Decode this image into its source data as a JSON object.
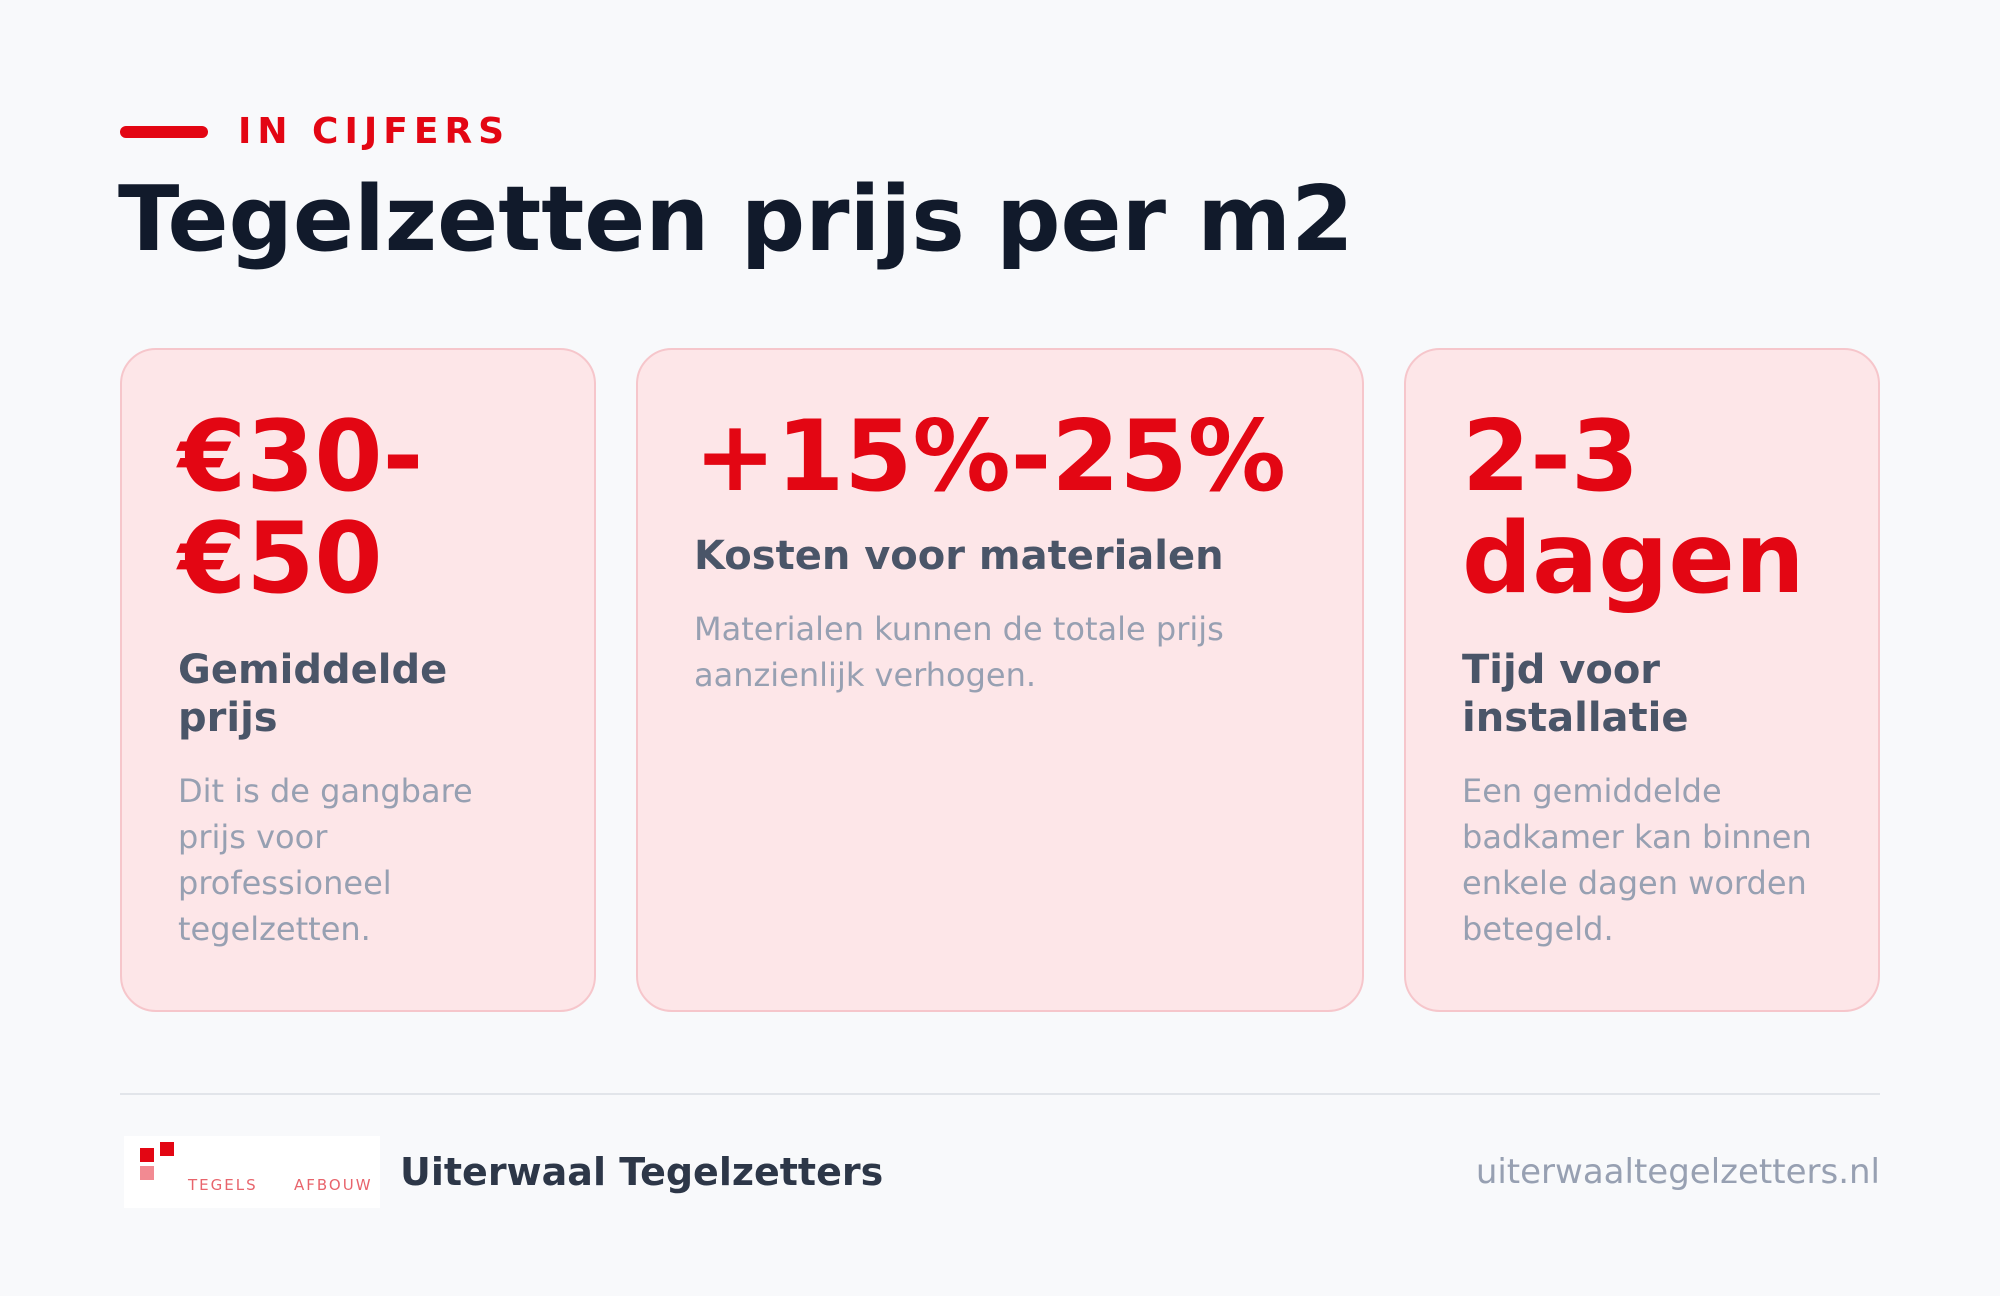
{
  "header": {
    "eyebrow": "IN CIJFERS",
    "title": "Tegelzetten prijs per m2"
  },
  "cards": [
    {
      "value_line1": "€30-",
      "value_line2": "€50",
      "label_line1": "Gemiddelde",
      "label_line2": "prijs",
      "desc_lines": [
        "Dit is de gangbare",
        "prijs voor",
        "professioneel",
        "tegelzetten."
      ]
    },
    {
      "value": "+15%-25%",
      "label": "Kosten voor materialen",
      "desc_lines": [
        "Materialen kunnen de totale prijs",
        "aanzienlijk verhogen."
      ]
    },
    {
      "value_line1": "2-3",
      "value_line2": "dagen",
      "label_line1": "Tijd voor",
      "label_line2": "installatie",
      "desc_lines": [
        "Een gemiddelde",
        "badkamer kan binnen",
        "enkele dagen worden",
        "betegeld."
      ]
    }
  ],
  "footer": {
    "logo_text_left": "TEGELS",
    "logo_text_right": "AFBOUW",
    "brand": "Uiterwaal Tegelzetters",
    "url": "uiterwaaltegelzetters.nl"
  },
  "colors": {
    "accent": "#e30613",
    "title": "#111a2b",
    "card_bg": "#fde6e8",
    "card_border": "#f6c6cb",
    "label": "#4a5568",
    "muted": "#97a0b2"
  }
}
